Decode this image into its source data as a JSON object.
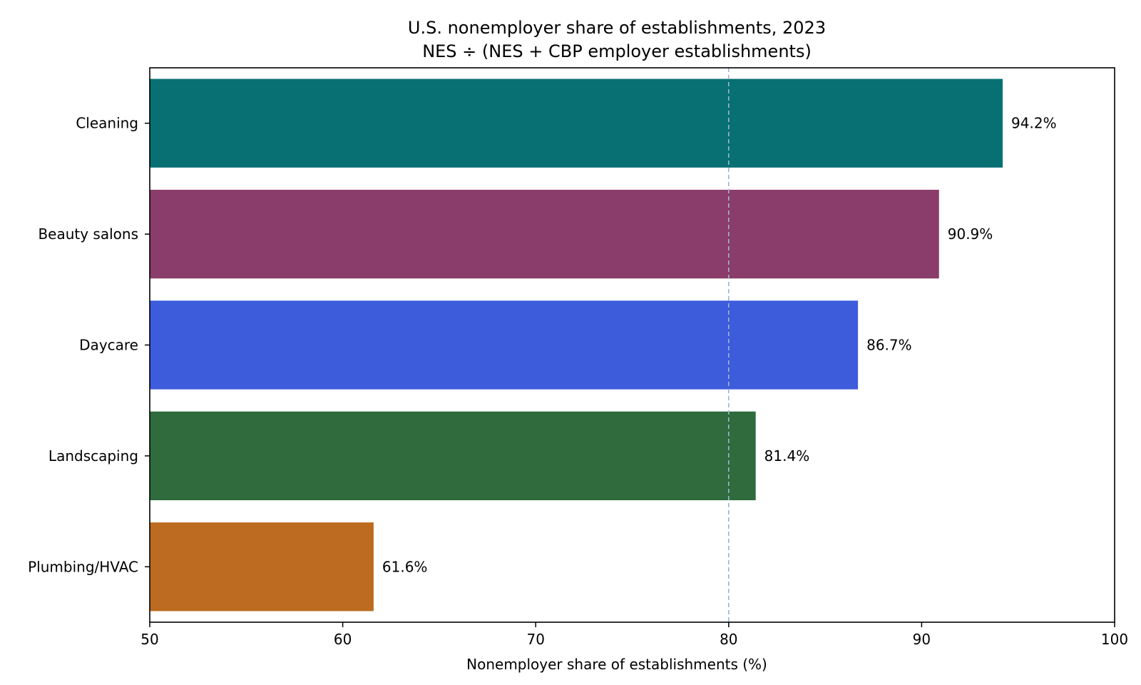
{
  "chart_data": {
    "type": "bar",
    "orientation": "horizontal",
    "title": "U.S. nonemployer share of establishments, 2023",
    "subtitle": "NES ÷ (NES + CBP employer establishments)",
    "xlabel": "Nonemployer share of establishments (%)",
    "ylabel": "",
    "xlim": [
      50,
      100
    ],
    "xticks": [
      50,
      60,
      70,
      80,
      90,
      100
    ],
    "xtick_labels": [
      "50",
      "60",
      "70",
      "80",
      "90",
      "100"
    ],
    "grid": false,
    "reference_line": {
      "x": 80,
      "style": "dashed",
      "color": "#9db4cf"
    },
    "categories": [
      "Cleaning",
      "Beauty salons",
      "Daycare",
      "Landscaping",
      "Plumbing/HVAC"
    ],
    "values": [
      94.2,
      90.9,
      86.7,
      81.4,
      61.6
    ],
    "data_labels": [
      "94.2%",
      "90.9%",
      "86.7%",
      "81.4%",
      "61.6%"
    ],
    "colors": [
      "#087073",
      "#8a3d6a",
      "#3c5cdc",
      "#2f6b3d",
      "#bc6b20"
    ]
  }
}
